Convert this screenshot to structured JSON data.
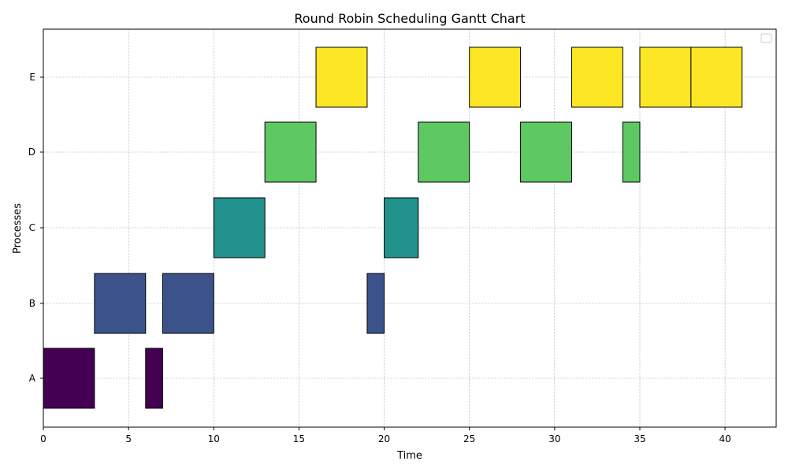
{
  "chart_data": {
    "type": "gantt",
    "title": "Round Robin Scheduling Gantt Chart",
    "xlabel": "Time",
    "ylabel": "Processes",
    "xlim": [
      0,
      43
    ],
    "xticks": [
      0,
      5,
      10,
      15,
      20,
      25,
      30,
      35,
      40
    ],
    "categories": [
      "A",
      "B",
      "C",
      "D",
      "E"
    ],
    "grid": true,
    "legend": "top-right, empty",
    "colors": {
      "A": "#440154",
      "B": "#3b528b",
      "C": "#21918c",
      "D": "#5ec962",
      "E": "#fde725"
    },
    "tasks": [
      {
        "process": "A",
        "start": 0,
        "end": 3
      },
      {
        "process": "B",
        "start": 3,
        "end": 6
      },
      {
        "process": "A",
        "start": 6,
        "end": 7
      },
      {
        "process": "B",
        "start": 7,
        "end": 10
      },
      {
        "process": "C",
        "start": 10,
        "end": 13
      },
      {
        "process": "D",
        "start": 13,
        "end": 16
      },
      {
        "process": "E",
        "start": 16,
        "end": 19
      },
      {
        "process": "B",
        "start": 19,
        "end": 20
      },
      {
        "process": "C",
        "start": 20,
        "end": 22
      },
      {
        "process": "D",
        "start": 22,
        "end": 25
      },
      {
        "process": "E",
        "start": 25,
        "end": 28
      },
      {
        "process": "D",
        "start": 28,
        "end": 31
      },
      {
        "process": "E",
        "start": 31,
        "end": 34
      },
      {
        "process": "D",
        "start": 34,
        "end": 35
      },
      {
        "process": "E",
        "start": 35,
        "end": 38
      },
      {
        "process": "E",
        "start": 38,
        "end": 41
      }
    ]
  }
}
